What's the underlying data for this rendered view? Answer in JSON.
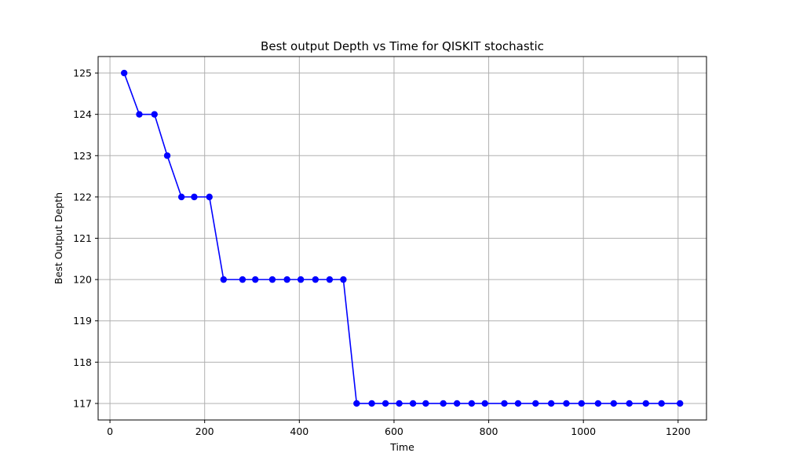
{
  "chart_data": {
    "type": "line",
    "title": "Best output Depth vs Time for QISKIT stochastic",
    "xlabel": "Time",
    "ylabel": "Best Output Depth",
    "xlim": [
      -25,
      1260
    ],
    "ylim": [
      116.6,
      125.4
    ],
    "xticks": [
      0,
      200,
      400,
      600,
      800,
      1000,
      1200
    ],
    "yticks": [
      117,
      118,
      119,
      120,
      121,
      122,
      123,
      124,
      125
    ],
    "grid": true,
    "series": [
      {
        "color": "#0000ff",
        "marker": "circle",
        "x": [
          30,
          62,
          94,
          121,
          151,
          178,
          210,
          240,
          280,
          307,
          343,
          374,
          403,
          434,
          464,
          493,
          521,
          553,
          582,
          611,
          640,
          667,
          704,
          733,
          764,
          792,
          833,
          862,
          899,
          932,
          964,
          996,
          1031,
          1064,
          1097,
          1132,
          1165,
          1204
        ],
        "y": [
          125,
          124,
          124,
          123,
          122,
          122,
          122,
          120,
          120,
          120,
          120,
          120,
          120,
          120,
          120,
          120,
          117,
          117,
          117,
          117,
          117,
          117,
          117,
          117,
          117,
          117,
          117,
          117,
          117,
          117,
          117,
          117,
          117,
          117,
          117,
          117,
          117,
          117
        ]
      }
    ]
  }
}
